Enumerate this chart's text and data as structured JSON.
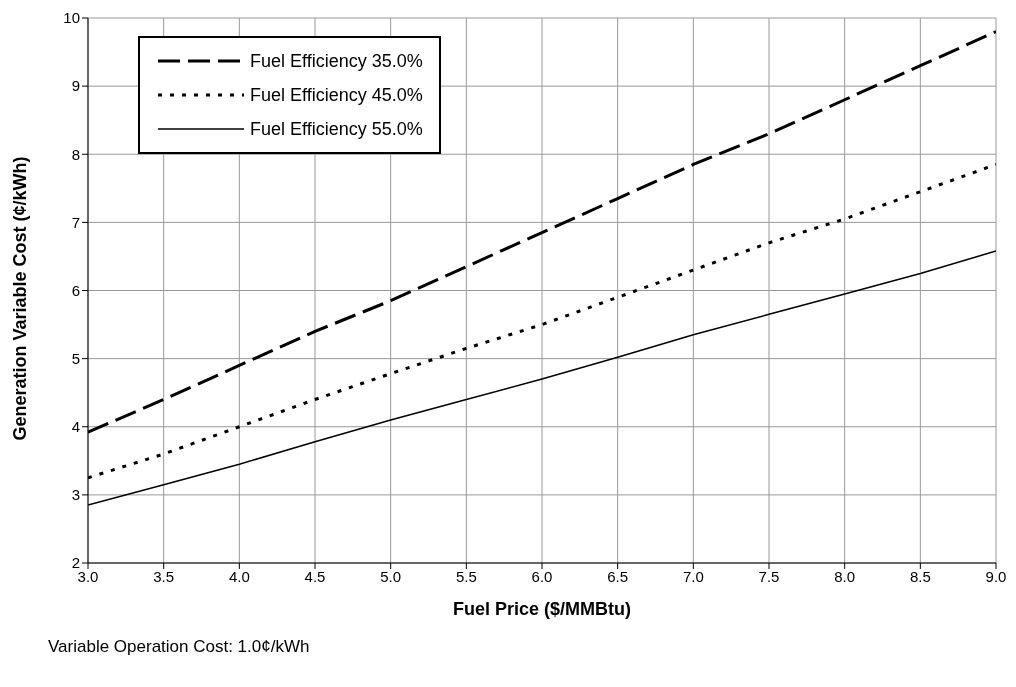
{
  "chart_data": {
    "type": "line",
    "xlabel": "Fuel Price ($/MMBtu)",
    "ylabel": "Generation Variable Cost (¢/kWh)",
    "x": [
      3,
      3.5,
      4,
      4.5,
      5,
      5.5,
      6,
      6.5,
      7,
      7.5,
      8,
      8.5,
      9
    ],
    "series": [
      {
        "name": "Fuel Efficiency  35.0%",
        "color": "#000000",
        "line_style": "dashed",
        "values": [
          3.92,
          4.4,
          4.9,
          5.4,
          5.85,
          6.35,
          6.85,
          7.35,
          7.85,
          8.3,
          8.8,
          9.3,
          9.8
        ]
      },
      {
        "name": "Fuel Efficiency  45.0%",
        "color": "#000000",
        "line_style": "dotted",
        "values": [
          3.25,
          3.6,
          4.0,
          4.4,
          4.78,
          5.15,
          5.5,
          5.9,
          6.3,
          6.7,
          7.05,
          7.45,
          7.85
        ]
      },
      {
        "name": "Fuel Efficiency  55.0%",
        "color": "#000000",
        "line_style": "solid",
        "values": [
          2.85,
          3.15,
          3.45,
          3.78,
          4.1,
          4.4,
          4.7,
          5.02,
          5.35,
          5.65,
          5.95,
          6.25,
          6.58
        ]
      }
    ],
    "xlim": [
      3,
      9
    ],
    "xticks": [
      {
        "value": 3,
        "label": "3.0"
      },
      {
        "value": 3.5,
        "label": "3.5"
      },
      {
        "value": 4,
        "label": "4.0"
      },
      {
        "value": 4.5,
        "label": "4.5"
      },
      {
        "value": 5,
        "label": "5.0"
      },
      {
        "value": 5.5,
        "label": "5.5"
      },
      {
        "value": 6,
        "label": "6.0"
      },
      {
        "value": 6.5,
        "label": "6.5"
      },
      {
        "value": 7,
        "label": "7.0"
      },
      {
        "value": 7.5,
        "label": "7.5"
      },
      {
        "value": 8,
        "label": "8.0"
      },
      {
        "value": 8.5,
        "label": "8.5"
      },
      {
        "value": 9,
        "label": "9.0"
      }
    ],
    "ylim": [
      2,
      10
    ],
    "yticks": [
      2,
      3,
      4,
      5,
      6,
      7,
      8,
      9,
      10
    ],
    "grid": true,
    "legend": "top left",
    "marker": "none",
    "annotations": [
      "Variable Operation Cost: 1.0¢/kWh"
    ]
  }
}
